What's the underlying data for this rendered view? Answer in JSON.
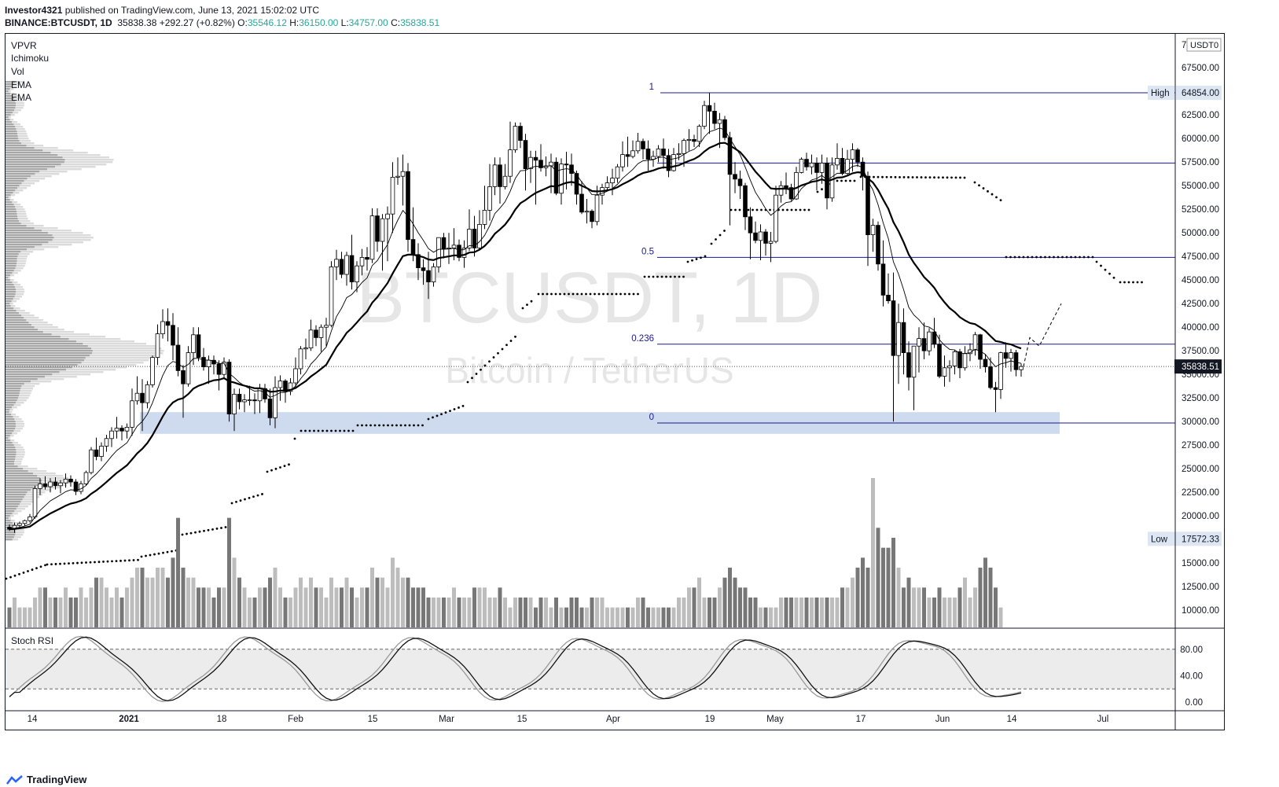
{
  "header": {
    "author": "Investor4321",
    "published_text": "published on TradingView.com, June 13, 2021 15:02:02 UTC",
    "symbol": "BINANCE:BTCUSDT, 1D",
    "last": "35838.38",
    "change": "+292.27 (+0.82%)",
    "o_label": "O:",
    "o": "35546.12",
    "h_label": "H:",
    "h": "36150.00",
    "l_label": "L:",
    "l": "34757.00",
    "c_label": "C:",
    "c": "35838.51"
  },
  "indicators": [
    "VPVR",
    "Ichimoku",
    "Vol",
    "EMA",
    "EMA"
  ],
  "watermark": {
    "title": "BTCUSDT, 1D",
    "subtitle": "Bitcoin / TetherUS"
  },
  "colors": {
    "fib": "#1a1a8c",
    "zone": "#c5d3ea",
    "bull": "#ffffff",
    "bear": "#000000"
  },
  "chart_data": {
    "type": "candlestick",
    "price_axis": {
      "currency_label": "USDT",
      "currency_suffix": "0",
      "top_clipped_label": "7",
      "ticks": [
        67500,
        65000,
        62500,
        60000,
        57500,
        55000,
        52500,
        50000,
        47500,
        45000,
        42500,
        40000,
        37500,
        35000,
        32500,
        30000,
        27500,
        25000,
        22500,
        20000,
        17500,
        15000,
        12500,
        10000
      ],
      "tick_labels": [
        "67500.00",
        "65000.00",
        "62500.00",
        "60000.00",
        "57500.00",
        "55000.00",
        "52500.00",
        "50000.00",
        "47500.00",
        "45000.00",
        "42500.00",
        "40000.00",
        "37500.00",
        "35000.00",
        "32500.00",
        "30000.00",
        "27500.00",
        "25000.00",
        "22500.00",
        "20000.00",
        "17500.00",
        "15000.00",
        "12500.00",
        "10000.00"
      ],
      "ylim": [
        8000,
        70000
      ]
    },
    "time_axis": {
      "labels": [
        "14",
        "2021",
        "18",
        "Feb",
        "15",
        "Mar",
        "15",
        "Apr",
        "19",
        "May",
        "17",
        "Jun",
        "14",
        "Jul"
      ]
    },
    "high": {
      "label": "High",
      "value": "64854.00",
      "price": 64854
    },
    "low": {
      "label": "Low",
      "value": "17572.33",
      "price": 17572.33
    },
    "current_price": {
      "label": "35838.51",
      "price": 35838.51
    },
    "fib_levels": [
      {
        "label": "1",
        "price": 64854
      },
      {
        "label": "0.5",
        "price": 47400
      },
      {
        "label": "0.236",
        "price": 38200
      },
      {
        "label": "0",
        "price": 29850
      }
    ],
    "extra_line": {
      "price": 57400
    },
    "support_zone": {
      "from": 28700,
      "to": 31000
    },
    "candles": [
      [
        18800,
        19100,
        18400,
        18600
      ],
      [
        18600,
        19300,
        18200,
        19000
      ],
      [
        19000,
        19400,
        18700,
        19200
      ],
      [
        19200,
        19600,
        18900,
        19500
      ],
      [
        19500,
        20200,
        19300,
        19900
      ],
      [
        19900,
        23200,
        19700,
        22900
      ],
      [
        22900,
        24000,
        22200,
        23400
      ],
      [
        23400,
        24200,
        22800,
        23100
      ],
      [
        23100,
        24000,
        22500,
        23600
      ],
      [
        23600,
        24100,
        22800,
        23200
      ],
      [
        23200,
        23800,
        22400,
        23500
      ],
      [
        23500,
        24500,
        23000,
        23900
      ],
      [
        23900,
        24300,
        23100,
        23600
      ],
      [
        23600,
        23900,
        22200,
        22600
      ],
      [
        22600,
        23700,
        22300,
        23400
      ],
      [
        23400,
        24800,
        23200,
        24600
      ],
      [
        24600,
        27300,
        24400,
        27000
      ],
      [
        27000,
        28300,
        25900,
        26300
      ],
      [
        26300,
        27800,
        25800,
        27400
      ],
      [
        27400,
        28600,
        26800,
        28200
      ],
      [
        28200,
        29400,
        27300,
        29000
      ],
      [
        29000,
        30500,
        28200,
        29300
      ],
      [
        29300,
        29600,
        28000,
        29000
      ],
      [
        29000,
        29800,
        28200,
        29400
      ],
      [
        29400,
        33500,
        28500,
        32200
      ],
      [
        32200,
        34800,
        31800,
        33000
      ],
      [
        33000,
        34500,
        29000,
        32000
      ],
      [
        32000,
        34300,
        31400,
        33900
      ],
      [
        33900,
        37000,
        33600,
        36800
      ],
      [
        36800,
        40300,
        36000,
        39300
      ],
      [
        39300,
        41900,
        38800,
        40600
      ],
      [
        40600,
        42000,
        38500,
        40200
      ],
      [
        40200,
        41500,
        36500,
        38100
      ],
      [
        38100,
        40000,
        34800,
        35400
      ],
      [
        35400,
        36000,
        30400,
        34000
      ],
      [
        34000,
        38000,
        33700,
        37300
      ],
      [
        37300,
        40000,
        36000,
        39200
      ],
      [
        39200,
        40000,
        36400,
        36800
      ],
      [
        36800,
        37800,
        35400,
        35800
      ],
      [
        35800,
        37000,
        34000,
        36500
      ],
      [
        36500,
        37000,
        35000,
        36100
      ],
      [
        36100,
        36500,
        33300,
        35000
      ],
      [
        35000,
        36800,
        34500,
        36300
      ],
      [
        36300,
        36600,
        30000,
        30800
      ],
      [
        30800,
        33500,
        29000,
        32900
      ],
      [
        32900,
        33500,
        31300,
        32100
      ],
      [
        32100,
        32900,
        31000,
        32300
      ],
      [
        32300,
        33800,
        31700,
        32300
      ],
      [
        32300,
        33000,
        30800,
        32200
      ],
      [
        32200,
        34000,
        30900,
        33500
      ],
      [
        33500,
        34000,
        32000,
        32400
      ],
      [
        32400,
        33500,
        29600,
        30400
      ],
      [
        30400,
        34800,
        29300,
        33600
      ],
      [
        33600,
        34900,
        32200,
        34300
      ],
      [
        34300,
        34500,
        32000,
        33200
      ],
      [
        33200,
        34600,
        32800,
        34100
      ],
      [
        34100,
        36800,
        33500,
        35600
      ],
      [
        35600,
        38000,
        35000,
        37700
      ],
      [
        37700,
        38800,
        36600,
        37800
      ],
      [
        37800,
        40800,
        37500,
        39700
      ],
      [
        39700,
        40200,
        38000,
        38900
      ],
      [
        38900,
        40300,
        37400,
        40000
      ],
      [
        40000,
        41000,
        38000,
        40200
      ],
      [
        40200,
        47000,
        40000,
        46400
      ],
      [
        46400,
        48200,
        45000,
        47200
      ],
      [
        47200,
        48000,
        45200,
        45600
      ],
      [
        45600,
        48000,
        44400,
        47600
      ],
      [
        47600,
        49800,
        44000,
        44800
      ],
      [
        44800,
        47000,
        43700,
        46500
      ],
      [
        46500,
        48300,
        45500,
        47400
      ],
      [
        47400,
        48500,
        46000,
        47200
      ],
      [
        47200,
        52600,
        46800,
        51800
      ],
      [
        51800,
        52600,
        48000,
        49100
      ],
      [
        49100,
        52000,
        46000,
        51500
      ],
      [
        51500,
        52800,
        47000,
        52000
      ],
      [
        52000,
        57500,
        50000,
        55900
      ],
      [
        55900,
        58000,
        55100,
        56000
      ],
      [
        56000,
        58300,
        52900,
        56500
      ],
      [
        56500,
        57400,
        48000,
        49300
      ],
      [
        49300,
        52700,
        47000,
        47700
      ],
      [
        47700,
        48900,
        45000,
        46300
      ],
      [
        46300,
        47200,
        44500,
        46000
      ],
      [
        46000,
        48000,
        43000,
        44800
      ],
      [
        44800,
        46800,
        44300,
        46400
      ],
      [
        46400,
        49500,
        45800,
        49500
      ],
      [
        49500,
        50000,
        47300,
        48300
      ],
      [
        48300,
        50000,
        46700,
        48400
      ],
      [
        48400,
        50500,
        47100,
        48700
      ],
      [
        48700,
        49300,
        47000,
        47400
      ],
      [
        47400,
        49200,
        46300,
        48400
      ],
      [
        48400,
        52500,
        48100,
        50400
      ],
      [
        50400,
        51800,
        47500,
        48400
      ],
      [
        48400,
        52400,
        48300,
        50900
      ],
      [
        50900,
        55000,
        50400,
        52400
      ],
      [
        52400,
        57300,
        51300,
        54900
      ],
      [
        54900,
        58000,
        54000,
        57200
      ],
      [
        57200,
        58000,
        53100,
        54900
      ],
      [
        54900,
        57300,
        54600,
        56000
      ],
      [
        56000,
        61800,
        55300,
        58800
      ],
      [
        58800,
        61700,
        58500,
        61300
      ],
      [
        61300,
        61700,
        59000,
        59800
      ],
      [
        59800,
        60500,
        54500,
        56800
      ],
      [
        56800,
        58700,
        55300,
        58000
      ],
      [
        58000,
        58700,
        53000,
        57700
      ],
      [
        57700,
        59400,
        56500,
        56900
      ],
      [
        56900,
        58100,
        56000,
        57100
      ],
      [
        57100,
        58400,
        54200,
        57500
      ],
      [
        57500,
        58000,
        54000,
        54200
      ],
      [
        54200,
        57900,
        53000,
        57300
      ],
      [
        57300,
        58600,
        54600,
        57200
      ],
      [
        57200,
        58400,
        55000,
        56300
      ],
      [
        56300,
        56600,
        53000,
        54100
      ],
      [
        54100,
        55500,
        52000,
        52200
      ],
      [
        52200,
        53600,
        51000,
        52300
      ],
      [
        52300,
        52500,
        50500,
        51200
      ],
      [
        51200,
        55000,
        50800,
        54000
      ],
      [
        54000,
        55200,
        53000,
        54800
      ],
      [
        54800,
        56000,
        54400,
        55300
      ],
      [
        55300,
        56800,
        54000,
        55800
      ],
      [
        55800,
        57300,
        55300,
        57000
      ],
      [
        57000,
        59700,
        56500,
        58300
      ],
      [
        58300,
        60200,
        57000,
        58100
      ],
      [
        58100,
        59800,
        57900,
        58700
      ],
      [
        58700,
        60600,
        58400,
        59700
      ],
      [
        59700,
        60000,
        57800,
        58900
      ],
      [
        58900,
        59800,
        56600,
        57800
      ],
      [
        57800,
        58700,
        57000,
        58100
      ],
      [
        58100,
        59300,
        57500,
        58900
      ],
      [
        58900,
        60000,
        56800,
        58200
      ],
      [
        58200,
        58900,
        55900,
        56600
      ],
      [
        56600,
        59000,
        56500,
        58300
      ],
      [
        58300,
        59500,
        57700,
        58400
      ],
      [
        58400,
        60000,
        57000,
        59800
      ],
      [
        59800,
        61000,
        58700,
        59900
      ],
      [
        59900,
        60400,
        59100,
        59700
      ],
      [
        59700,
        61500,
        59100,
        61300
      ],
      [
        61300,
        64000,
        61000,
        63500
      ],
      [
        63500,
        64854,
        60500,
        62900
      ],
      [
        62900,
        63800,
        61000,
        61600
      ],
      [
        61600,
        62700,
        59000,
        62000
      ],
      [
        62000,
        62400,
        59800,
        60100
      ],
      [
        60100,
        60700,
        50800,
        56200
      ],
      [
        56200,
        57500,
        54200,
        55700
      ],
      [
        55700,
        56600,
        53600,
        55000
      ],
      [
        55000,
        55300,
        50300,
        51700
      ],
      [
        51700,
        52700,
        47200,
        50000
      ],
      [
        50000,
        51200,
        48900,
        49200
      ],
      [
        49200,
        50900,
        47100,
        50100
      ],
      [
        50100,
        50400,
        47600,
        48900
      ],
      [
        48900,
        50100,
        46900,
        49100
      ],
      [
        49100,
        55000,
        48900,
        54000
      ],
      [
        54000,
        55500,
        53200,
        55000
      ],
      [
        55000,
        56400,
        54100,
        54800
      ],
      [
        54800,
        55200,
        53400,
        53600
      ],
      [
        53600,
        57000,
        53500,
        56400
      ],
      [
        56400,
        58000,
        56300,
        57800
      ],
      [
        57800,
        58500,
        56600,
        57000
      ],
      [
        57000,
        58300,
        56200,
        57400
      ],
      [
        57400,
        58000,
        54500,
        56400
      ],
      [
        56400,
        58300,
        55200,
        57400
      ],
      [
        57400,
        58000,
        52500,
        53700
      ],
      [
        53700,
        58000,
        53300,
        57200
      ],
      [
        57200,
        59500,
        56700,
        57900
      ],
      [
        57900,
        59000,
        56100,
        56300
      ],
      [
        56300,
        58800,
        56000,
        57800
      ],
      [
        57800,
        59500,
        56500,
        58800
      ],
      [
        58800,
        59000,
        57000,
        57500
      ],
      [
        57500,
        58000,
        54500,
        56000
      ],
      [
        56000,
        56500,
        46500,
        49800
      ],
      [
        49800,
        51500,
        48000,
        50800
      ],
      [
        50800,
        51200,
        46000,
        46700
      ],
      [
        46700,
        49200,
        42200,
        43400
      ],
      [
        43400,
        45700,
        42500,
        42800
      ],
      [
        42800,
        45800,
        30000,
        37000
      ],
      [
        37000,
        42500,
        34000,
        40500
      ],
      [
        40500,
        42000,
        35000,
        37300
      ],
      [
        37300,
        38500,
        33300,
        34700
      ],
      [
        34700,
        38000,
        31200,
        38000
      ],
      [
        38000,
        40000,
        35200,
        38800
      ],
      [
        38800,
        40500,
        36600,
        37500
      ],
      [
        37500,
        39900,
        37000,
        39500
      ],
      [
        39500,
        41000,
        37800,
        38200
      ],
      [
        38200,
        39200,
        34600,
        34800
      ],
      [
        34800,
        37000,
        33700,
        35700
      ],
      [
        35700,
        36500,
        34200,
        35900
      ],
      [
        35900,
        37600,
        35000,
        37400
      ],
      [
        37400,
        37700,
        34600,
        35700
      ],
      [
        35700,
        38000,
        35400,
        37200
      ],
      [
        37200,
        38300,
        36400,
        37600
      ],
      [
        37600,
        39500,
        37000,
        39200
      ],
      [
        39200,
        39300,
        35600,
        36600
      ],
      [
        36600,
        37100,
        35200,
        35800
      ],
      [
        35800,
        36800,
        33400,
        33600
      ],
      [
        33600,
        34200,
        31000,
        33400
      ],
      [
        33400,
        37400,
        32400,
        37300
      ],
      [
        37300,
        38400,
        35700,
        36700
      ],
      [
        36700,
        37700,
        35300,
        37300
      ],
      [
        37300,
        37600,
        34800,
        35500
      ],
      [
        35500,
        36150,
        34757,
        35838
      ]
    ],
    "volume": [
      2,
      3,
      2,
      2,
      2,
      3,
      4,
      4,
      3,
      3,
      3,
      4,
      3,
      3,
      4,
      3,
      4,
      5,
      5,
      4,
      3,
      4,
      3,
      4,
      5,
      6,
      6,
      5,
      5,
      6,
      6,
      5,
      7,
      11,
      6,
      5,
      5,
      4,
      4,
      4,
      3,
      4,
      4,
      11,
      7,
      5,
      4,
      3,
      3,
      4,
      4,
      5,
      6,
      4,
      3,
      3,
      4,
      5,
      4,
      5,
      4,
      4,
      3,
      5,
      4,
      4,
      5,
      4,
      3,
      4,
      4,
      6,
      5,
      5,
      4,
      7,
      6,
      5,
      5,
      4,
      4,
      4,
      3,
      3,
      3,
      3,
      3,
      4,
      3,
      3,
      3,
      4,
      4,
      4,
      3,
      3,
      4,
      3,
      2,
      3,
      3,
      3,
      3,
      2,
      3,
      3,
      2,
      3,
      2,
      2,
      3,
      3,
      2,
      2,
      3,
      3,
      3,
      2,
      2,
      2,
      2,
      2,
      2,
      3,
      3,
      2,
      2,
      2,
      2,
      2,
      2,
      3,
      3,
      4,
      4,
      5,
      3,
      3,
      3,
      4,
      5,
      6,
      5,
      4,
      4,
      3,
      3,
      2,
      2,
      2,
      2,
      3,
      3,
      3,
      3,
      3,
      3,
      3,
      3,
      3,
      3,
      3,
      3,
      4,
      4,
      5,
      6,
      7,
      6,
      15,
      10,
      8,
      8,
      9,
      6,
      4,
      5,
      4,
      4,
      4,
      3,
      3,
      4,
      3,
      3,
      3,
      4,
      5,
      3,
      4,
      6,
      7,
      6,
      4,
      2
    ],
    "stoch_rsi": {
      "ticks": [
        80,
        40,
        0
      ],
      "tick_labels": [
        "80.00",
        "40.00",
        "0.00"
      ],
      "label": "Stoch RSI"
    }
  },
  "footer": {
    "brand": "TradingView"
  }
}
